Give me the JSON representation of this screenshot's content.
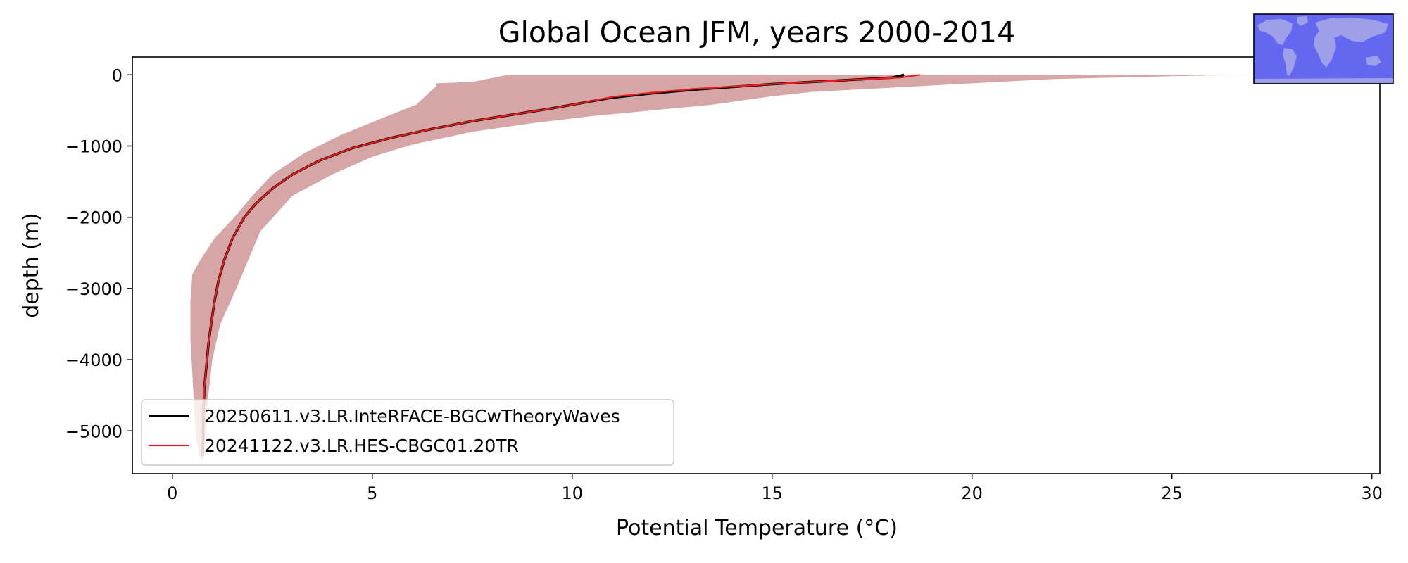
{
  "chart_data": {
    "type": "line",
    "title": "Global Ocean JFM, years 2000-2014",
    "xlabel": "Potential Temperature (°C)",
    "ylabel": "depth (m)",
    "xlim": [
      -1,
      30.2
    ],
    "ylim": [
      -5600,
      250
    ],
    "xticks": [
      0,
      5,
      10,
      15,
      20,
      25,
      30
    ],
    "xtick_labels": [
      "0",
      "5",
      "10",
      "15",
      "20",
      "25",
      "30"
    ],
    "yticks": [
      0,
      -1000,
      -2000,
      -3000,
      -4000,
      -5000
    ],
    "ytick_labels": [
      "0",
      "−1000",
      "−2000",
      "−3000",
      "−4000",
      "−5000"
    ],
    "grid": false,
    "legend_position": "lower-left",
    "inset": "global ocean map",
    "colors": {
      "series_1": "#000000",
      "series_2": "#ee1c1c",
      "band": "#d6a6a6",
      "band_light": "#c9c9c9",
      "map_ocean": "#6468f0",
      "map_land": "#a3a5e8"
    },
    "series": [
      {
        "name": "20250611.v3.LR.InteRFACE-BGCwTheoryWaves",
        "color": "#000000",
        "x": [
          18.3,
          18.0,
          17.0,
          16.0,
          15.0,
          14.0,
          13.0,
          12.0,
          11.0,
          10.2,
          9.5,
          8.5,
          7.5,
          6.5,
          5.5,
          4.5,
          3.7,
          3.0,
          2.5,
          2.1,
          1.8,
          1.5,
          1.3,
          1.15,
          1.05,
          0.97,
          0.9,
          0.85,
          0.8,
          0.78,
          0.77,
          0.76
        ],
        "y": [
          0,
          -40,
          -70,
          -100,
          -130,
          -170,
          -210,
          -260,
          -320,
          -400,
          -470,
          -560,
          -650,
          -760,
          -880,
          -1030,
          -1200,
          -1400,
          -1600,
          -1800,
          -2000,
          -2300,
          -2600,
          -2900,
          -3200,
          -3500,
          -3800,
          -4100,
          -4400,
          -4700,
          -5000,
          -5350
        ]
      },
      {
        "name": "20241122.v3.LR.HES-CBGC01.20TR",
        "color": "#ee1c1c",
        "x": [
          18.7,
          18.2,
          17.0,
          16.0,
          15.0,
          14.0,
          13.0,
          12.0,
          11.0,
          10.3,
          9.5,
          8.5,
          7.5,
          6.5,
          5.5,
          4.5,
          3.7,
          3.0,
          2.5,
          2.1,
          1.8,
          1.5,
          1.3,
          1.15,
          1.05,
          0.97,
          0.9,
          0.85,
          0.8,
          0.78,
          0.77,
          0.76
        ],
        "y": [
          0,
          -40,
          -70,
          -100,
          -130,
          -165,
          -200,
          -250,
          -310,
          -390,
          -470,
          -560,
          -650,
          -760,
          -880,
          -1030,
          -1200,
          -1400,
          -1600,
          -1800,
          -2000,
          -2300,
          -2600,
          -2900,
          -3200,
          -3500,
          -3800,
          -4100,
          -4400,
          -4700,
          -5000,
          -5350
        ]
      }
    ],
    "spread_band": {
      "left": {
        "x": [
          8.4,
          7.5,
          6.6,
          6.6,
          6.1,
          5.2,
          4.2,
          3.3,
          2.5,
          2.0,
          1.55,
          1.05,
          0.7,
          0.5,
          0.45,
          0.45,
          0.5,
          0.55,
          0.6,
          0.7
        ],
        "y": [
          0,
          -100,
          -120,
          -160,
          -420,
          -620,
          -850,
          -1100,
          -1400,
          -1700,
          -2000,
          -2300,
          -2600,
          -2800,
          -3200,
          -3700,
          -4200,
          -4700,
          -5100,
          -5400
        ]
      },
      "right": {
        "x": [
          27.0,
          25.0,
          22.0,
          20.0,
          18.0,
          16.0,
          15.0,
          13.5,
          12.0,
          10.5,
          9.0,
          7.5,
          6.0,
          5.0,
          4.0,
          3.0,
          2.2,
          1.6,
          1.2,
          1.0,
          0.9,
          0.85,
          0.8,
          0.78
        ],
        "y": [
          0,
          -20,
          -60,
          -120,
          -180,
          -240,
          -300,
          -420,
          -500,
          -580,
          -680,
          -800,
          -980,
          -1150,
          -1400,
          -1700,
          -2200,
          -3000,
          -3500,
          -4000,
          -4500,
          -5000,
          -5200,
          -5400
        ]
      }
    }
  }
}
